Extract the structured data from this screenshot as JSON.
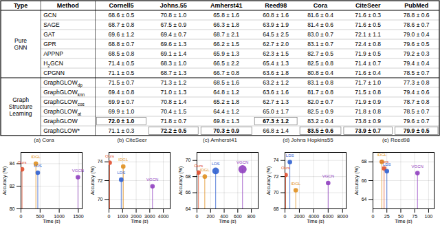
{
  "chart_data": [
    {
      "type": "table",
      "columns": [
        "Type",
        "Method",
        "Cornell5",
        "Johns.55",
        "Amherst41",
        "Reed98",
        "Cora",
        "CiteSeer",
        "PubMed"
      ],
      "groups": [
        {
          "label": [
            "Pure",
            "GNN"
          ],
          "rows": [
            {
              "method": [
                "GCN"
              ],
              "values": [
                "68.6 ± 0.5",
                "70.8 ± 1.0",
                "65.8 ± 1.6",
                "60.8 ± 1.6",
                "81.6 ± 0.4",
                "71.6 ± 0.3",
                "78.8 ± 0.6"
              ]
            },
            {
              "method": [
                "SAGE"
              ],
              "values": [
                "68.7 ± 0.8",
                "67.5 ± 0.9",
                "66.3 ± 1.8",
                "63.9 ± 1.9",
                "81.4 ± 0.6",
                "71.6 ± 0.5",
                "78.6 ± 0.7"
              ]
            },
            {
              "method": [
                "GAT"
              ],
              "values": [
                "69.6 ± 1.2",
                "69.4 ± 0.7",
                "68.7 ± 2.1",
                "64.5 ± 2.5",
                "83.0 ± 0.7",
                "72.1 ± 1.1",
                "79.0 ± 0.4"
              ]
            },
            {
              "method": [
                "GPR"
              ],
              "values": [
                "68.8 ± 0.7",
                "69.6 ± 1.3",
                "66.2 ± 1.5",
                "62.7 ± 2.0",
                "83.1 ± 0.7",
                "72.4 ± 0.8",
                "79.6 ± 0.5"
              ]
            },
            {
              "method": [
                "APPNP"
              ],
              "values": [
                "68.5 ± 0.8",
                "69.1 ± 1.4",
                "65.9 ± 1.3",
                "62.3 ± 1.5",
                "82.7 ± 0.5",
                "71.9 ± 0.5",
                "79.2 ± 0.3"
              ]
            },
            {
              "method": [
                "H",
                "2",
                "GCN"
              ],
              "values": [
                "71.4 ± 0.5",
                "68.3 ± 1.0",
                "66.5 ± 2.2",
                "65.4 ± 1.3",
                "82.5 ± 0.8",
                "71.4 ± 0.7",
                "79.4 ± 0.4"
              ]
            },
            {
              "method": [
                "CPGNN"
              ],
              "values": [
                "71.1 ± 0.5",
                "68.7 ± 1.3",
                "66.7 ± 0.8",
                "63.6 ± 1.8",
                "80.8 ± 0.4",
                "71.6 ± 0.4",
                "78.5 ± 0.7"
              ]
            }
          ]
        },
        {
          "label": [
            "Graph",
            "Structure",
            "Learning"
          ],
          "rows": [
            {
              "method": [
                "GraphGLOW",
                "dp"
              ],
              "values": [
                "71.5 ± 0.7",
                "71.3 ± 1.2",
                "68.5 ± 1.6",
                "63.2 ± 1.2",
                "83.1 ± 0.8",
                "71.7 ± 1.0",
                "77.3 ± 0.8"
              ]
            },
            {
              "method": [
                "GraphGLOW",
                "knn"
              ],
              "values": [
                "69.4 ± 0.8",
                "71.0 ± 1.3",
                "64.8 ± 1.2",
                "63.6 ± 1.6",
                "81.7 ± 0.8",
                "71.5 ± 0.8",
                "79.4 ± 0.6"
              ]
            },
            {
              "method": [
                "GraphGLOW",
                "cos"
              ],
              "values": [
                "69.9 ± 0.7",
                "70.8 ± 1.4",
                "65.2 ± 1.8",
                "62.7 ± 1.3",
                "82.0 ± 0.7",
                "71.9 ± 0.9",
                "78.7 ± 0.8"
              ]
            },
            {
              "method": [
                "GraphGLOW",
                "at"
              ],
              "values": [
                "69.9 ± 1.0",
                "70.4 ± 1.5",
                "64.4 ± 1.2",
                "65.0 ± 1.7",
                "82.5 ± 0.9",
                "71.8 ± 0.8",
                "78.5 ± 0.7"
              ]
            },
            {
              "method": [
                "GraphGLOW"
              ],
              "values": [
                "72.0 ± 1.0",
                "71.8 ± 0.7",
                "69.8 ± 1.3",
                "67.3 ± 1.2",
                "83.2 ± 0.4",
                "73.8 ± 0.9",
                "79.6 ± 0.7"
              ],
              "bold": [
                0,
                3
              ]
            },
            {
              "method": [
                "GraphGLOW*"
              ],
              "values": [
                "71.1 ± 0.3",
                "72.2 ± 0.5",
                "70.3 ± 0.9",
                "66.8 ± 1.4",
                "83.5 ± 0.6",
                "73.9 ± 0.7",
                "79.9 ± 0.5"
              ],
              "bold": [
                1,
                2,
                4,
                5,
                6
              ]
            }
          ]
        }
      ]
    },
    {
      "type": "scatter",
      "title": "(a) Cora",
      "xlabel": "Time (s)",
      "ylabel": "Accuracy (%)",
      "xlim": [
        0,
        1600
      ],
      "ylim": [
        80,
        85
      ],
      "xticks": [
        0,
        500,
        1000,
        1500
      ],
      "yticks": [
        80,
        82,
        84
      ],
      "grid": true,
      "points": [
        {
          "label": "Ours",
          "x": 28,
          "y": 83.5,
          "color": "#e05030",
          "size": 55
        },
        {
          "label": "IDGL",
          "x": 390,
          "y": 84.0,
          "color": "#e09020",
          "size": 55
        },
        {
          "label": "LDS",
          "x": 440,
          "y": 83.2,
          "color": "#3060d0",
          "size": 55
        },
        {
          "label": "VGCN",
          "x": 1490,
          "y": 82.8,
          "color": "#9040c0",
          "size": 55
        }
      ]
    },
    {
      "type": "scatter",
      "title": "(b) CiteSeer",
      "xlabel": "Time (s)",
      "ylabel": "Accuracy (%)",
      "xlim": [
        0,
        4500
      ],
      "ylim": [
        69,
        75
      ],
      "xticks": [
        0,
        1000,
        2000,
        3000,
        4000
      ],
      "yticks": [
        70,
        72,
        74
      ],
      "grid": true,
      "points": [
        {
          "label": "Ours",
          "x": 50,
          "y": 73.9,
          "color": "#e05030",
          "size": 55
        },
        {
          "label": "IDGL",
          "x": 1050,
          "y": 73.5,
          "color": "#e09020",
          "size": 55
        },
        {
          "label": "LDS",
          "x": 900,
          "y": 72.1,
          "color": "#3060d0",
          "size": 55
        },
        {
          "label": "VGCN",
          "x": 3200,
          "y": 71.4,
          "color": "#9040c0",
          "size": 55
        }
      ]
    },
    {
      "type": "scatter",
      "title": "(c) Amherst41",
      "xlabel": "Time (s)",
      "ylabel": "Accuracy (%)",
      "xlim": [
        0,
        900
      ],
      "ylim": [
        64,
        71
      ],
      "xticks": [
        0,
        200,
        400,
        600,
        800
      ],
      "yticks": [
        64,
        66,
        68,
        70
      ],
      "grid": true,
      "points": [
        {
          "label": "Ours",
          "x": 22,
          "y": 68.5,
          "color": "#e05030",
          "size": 55
        },
        {
          "label": "IDGL",
          "x": 115,
          "y": 68.0,
          "color": "#e09020",
          "size": 55
        },
        {
          "label": "LDS",
          "x": 275,
          "y": 68.7,
          "color": "#3060d0",
          "size": 120
        },
        {
          "label": "VGCN",
          "x": 670,
          "y": 68.9,
          "color": "#9040c0",
          "size": 180
        }
      ]
    },
    {
      "type": "scatter",
      "title": "(d) Johns Hopkins55",
      "xlabel": "Time (s)",
      "ylabel": "Accuracy (%)",
      "xlim": [
        0,
        8500
      ],
      "ylim": [
        68,
        75
      ],
      "xticks": [
        0,
        2000,
        4000,
        6000,
        8000
      ],
      "yticks": [
        68,
        70,
        72,
        74
      ],
      "grid": true,
      "points": [
        {
          "label": "Ours",
          "x": 90,
          "y": 72.2,
          "color": "#e05030",
          "size": 55
        },
        {
          "label": "IDGL",
          "x": 1500,
          "y": 70.3,
          "color": "#e09020",
          "size": 55
        },
        {
          "label": "LDS",
          "x": 680,
          "y": 73.8,
          "color": "#3060d0",
          "size": 55
        },
        {
          "label": "VGCN",
          "x": 6000,
          "y": 71.2,
          "color": "#9040c0",
          "size": 55
        }
      ]
    },
    {
      "type": "scatter",
      "title": "(e) Reed98",
      "xlabel": "Time (s)",
      "ylabel": "Accuracy (%)",
      "xlim": [
        0,
        110
      ],
      "ylim": [
        63,
        69
      ],
      "xticks": [
        0,
        25,
        50,
        75,
        100
      ],
      "yticks": [
        64,
        66,
        68
      ],
      "grid": true,
      "points": [
        {
          "label": "Ours",
          "x": 20,
          "y": 67.3,
          "color": "#e05030",
          "size": 55
        },
        {
          "label": "IDGL",
          "x": 16,
          "y": 68.0,
          "color": "#e09020",
          "size": 55
        },
        {
          "label": "LDS",
          "x": 25,
          "y": 67.0,
          "color": "#3060d0",
          "size": 55
        },
        {
          "label": "VGCN",
          "x": 80,
          "y": 66.8,
          "color": "#9040c0",
          "size": 55
        }
      ]
    }
  ]
}
